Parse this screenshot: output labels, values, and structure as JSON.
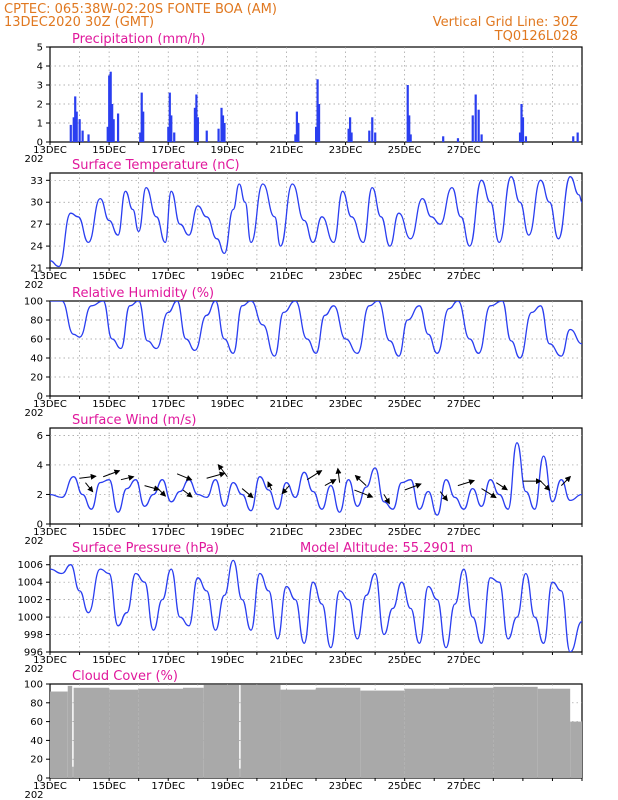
{
  "header": {
    "line1_left": "CPTEC:   065:38W-02:20S   FONTE BOA (AM)",
    "line2_left": "13DEC2020 30Z (GMT)",
    "line2_right": "Vertical Grid Line: 30Z",
    "line3_right": "TQ0126L028"
  },
  "colors": {
    "header": "#e07820",
    "title": "#e0189c",
    "series": "#2a3ef0",
    "cloud": "#a9a9a9",
    "arrow": "#000000"
  },
  "date_labels": [
    "13DEC",
    "15DEC",
    "17DEC",
    "19DEC",
    "21DEC",
    "23DEC",
    "25DEC",
    "27DEC"
  ],
  "year_stub": "202",
  "chart_data": [
    {
      "id": "precip",
      "type": "bar",
      "title": "Precipitation (mm/h)",
      "ylim": [
        0,
        5
      ],
      "yticks": [
        0,
        1,
        2,
        3,
        4,
        5
      ],
      "units": "mm/h",
      "peaks": [
        [
          0.7,
          0.9
        ],
        [
          0.8,
          1.3
        ],
        [
          0.85,
          2.4
        ],
        [
          0.9,
          1.6
        ],
        [
          1.0,
          1.2
        ],
        [
          1.1,
          0.6
        ],
        [
          1.3,
          0.4
        ],
        [
          1.95,
          0.8
        ],
        [
          2.0,
          3.5
        ],
        [
          2.05,
          3.7
        ],
        [
          2.1,
          2.0
        ],
        [
          2.15,
          1.2
        ],
        [
          2.3,
          1.5
        ],
        [
          3.05,
          0.5
        ],
        [
          3.1,
          2.6
        ],
        [
          3.15,
          1.6
        ],
        [
          4.0,
          0.8
        ],
        [
          4.05,
          2.6
        ],
        [
          4.1,
          1.4
        ],
        [
          4.2,
          0.5
        ],
        [
          4.9,
          1.8
        ],
        [
          4.95,
          2.5
        ],
        [
          5.0,
          1.3
        ],
        [
          5.3,
          0.6
        ],
        [
          5.7,
          0.7
        ],
        [
          5.8,
          1.8
        ],
        [
          5.85,
          1.4
        ],
        [
          5.9,
          1.0
        ],
        [
          8.3,
          0.4
        ],
        [
          8.35,
          1.6
        ],
        [
          8.4,
          1.0
        ],
        [
          9.0,
          0.8
        ],
        [
          9.05,
          3.3
        ],
        [
          9.1,
          2.0
        ],
        [
          10.1,
          0.7
        ],
        [
          10.15,
          1.3
        ],
        [
          10.2,
          0.5
        ],
        [
          10.8,
          0.6
        ],
        [
          10.9,
          1.3
        ],
        [
          11.0,
          0.5
        ],
        [
          12.1,
          3.0
        ],
        [
          12.15,
          1.4
        ],
        [
          12.2,
          0.4
        ],
        [
          13.3,
          0.3
        ],
        [
          13.8,
          0.2
        ],
        [
          14.3,
          1.4
        ],
        [
          14.4,
          2.5
        ],
        [
          14.5,
          1.7
        ],
        [
          14.6,
          0.4
        ],
        [
          15.9,
          0.5
        ],
        [
          15.95,
          2.0
        ],
        [
          16.0,
          1.3
        ],
        [
          16.1,
          0.3
        ],
        [
          17.7,
          0.3
        ],
        [
          17.85,
          0.5
        ]
      ]
    },
    {
      "id": "temp",
      "type": "line",
      "title": "Surface Temperature (nC)",
      "ylim": [
        21,
        34
      ],
      "yticks": [
        21,
        24,
        27,
        30,
        33
      ],
      "units": "C",
      "x": [
        0,
        0.3,
        0.7,
        0.95,
        1.3,
        1.7,
        2.0,
        2.3,
        2.55,
        2.8,
        3.0,
        3.25,
        3.6,
        3.9,
        4.1,
        4.4,
        4.7,
        5.0,
        5.3,
        5.65,
        5.9,
        6.2,
        6.4,
        6.6,
        6.8,
        7.2,
        7.6,
        7.8,
        8.2,
        8.6,
        8.9,
        9.2,
        9.6,
        9.9,
        10.2,
        10.6,
        10.9,
        11.2,
        11.5,
        11.8,
        12.2,
        12.6,
        12.9,
        13.2,
        13.6,
        13.9,
        14.2,
        14.6,
        14.9,
        15.2,
        15.6,
        15.9,
        16.2,
        16.6,
        16.9,
        17.2,
        17.6,
        17.9,
        18.0
      ],
      "y": [
        22.0,
        21.2,
        28.5,
        28.0,
        24.5,
        30.5,
        27.5,
        25.5,
        31.5,
        29.0,
        26.0,
        32.0,
        28.0,
        24.5,
        31.5,
        27.0,
        25.5,
        29.5,
        28.0,
        25.0,
        23.0,
        29.0,
        32.5,
        30.0,
        24.5,
        32.5,
        28.0,
        24.0,
        32.5,
        27.5,
        24.5,
        28.0,
        24.5,
        31.5,
        28.0,
        24.5,
        32.0,
        28.0,
        24.0,
        28.5,
        25.0,
        30.5,
        28.0,
        27.0,
        32.0,
        28.0,
        24.0,
        33.0,
        30.0,
        24.5,
        33.5,
        30.0,
        25.5,
        33.0,
        30.0,
        25.0,
        33.5,
        31.0,
        30.0
      ]
    },
    {
      "id": "rh",
      "type": "line",
      "title": "Relative Humidity (%)",
      "ylim": [
        0,
        100
      ],
      "yticks": [
        0,
        20,
        40,
        60,
        80,
        100
      ],
      "units": "%",
      "x": [
        0,
        0.4,
        0.8,
        1.0,
        1.4,
        1.8,
        2.1,
        2.4,
        2.7,
        3.0,
        3.3,
        3.6,
        4.0,
        4.3,
        4.6,
        4.9,
        5.3,
        5.6,
        5.9,
        6.2,
        6.5,
        6.8,
        7.2,
        7.6,
        7.9,
        8.3,
        8.7,
        9.0,
        9.3,
        9.6,
        10.0,
        10.4,
        10.8,
        11.1,
        11.5,
        11.8,
        12.1,
        12.5,
        12.8,
        13.1,
        13.5,
        13.8,
        14.2,
        14.5,
        14.9,
        15.3,
        15.6,
        15.9,
        16.3,
        16.6,
        16.9,
        17.3,
        17.6,
        18.0
      ],
      "y": [
        100,
        100,
        65,
        62,
        95,
        100,
        60,
        50,
        95,
        100,
        58,
        50,
        88,
        100,
        60,
        48,
        85,
        100,
        60,
        45,
        95,
        100,
        75,
        42,
        88,
        100,
        60,
        45,
        85,
        95,
        60,
        45,
        95,
        100,
        58,
        42,
        80,
        95,
        65,
        45,
        92,
        100,
        60,
        45,
        95,
        100,
        58,
        40,
        88,
        95,
        55,
        42,
        70,
        55
      ]
    },
    {
      "id": "wind",
      "type": "line",
      "title": "Surface Wind (m/s)",
      "ylim": [
        0,
        6.5
      ],
      "yticks": [
        0,
        2,
        4,
        6
      ],
      "units": "m/s",
      "x": [
        0,
        0.4,
        0.8,
        1.1,
        1.4,
        1.7,
        2.0,
        2.3,
        2.6,
        2.9,
        3.2,
        3.5,
        3.8,
        4.1,
        4.4,
        4.7,
        5.0,
        5.3,
        5.6,
        5.9,
        6.2,
        6.5,
        6.8,
        7.1,
        7.4,
        7.7,
        8.0,
        8.3,
        8.6,
        8.9,
        9.2,
        9.5,
        9.8,
        10.1,
        10.4,
        10.7,
        11.0,
        11.3,
        11.6,
        11.9,
        12.2,
        12.5,
        12.8,
        13.1,
        13.4,
        13.7,
        14.0,
        14.3,
        14.6,
        14.9,
        15.2,
        15.5,
        15.8,
        16.1,
        16.4,
        16.7,
        17.0,
        17.3,
        17.6,
        18.0
      ],
      "y": [
        2.0,
        1.8,
        3.2,
        2.0,
        1.0,
        2.8,
        3.0,
        0.8,
        2.4,
        3.0,
        1.2,
        2.0,
        3.0,
        1.5,
        2.2,
        3.0,
        2.0,
        1.8,
        3.0,
        1.2,
        2.8,
        2.0,
        0.9,
        3.2,
        2.3,
        1.0,
        2.8,
        1.8,
        3.5,
        2.2,
        1.0,
        2.6,
        0.8,
        3.0,
        1.2,
        2.5,
        3.8,
        1.5,
        1.0,
        2.8,
        3.0,
        1.0,
        2.2,
        0.6,
        3.0,
        1.8,
        1.0,
        2.4,
        1.2,
        3.0,
        2.0,
        1.0,
        5.5,
        2.2,
        1.0,
        4.6,
        1.5,
        3.0,
        1.6,
        2.0
      ],
      "arrows": [
        [
          1.0,
          3.1,
          0.9,
          0.2
        ],
        [
          1.2,
          2.8,
          0.4,
          -0.9
        ],
        [
          1.8,
          3.2,
          0.9,
          0.6
        ],
        [
          2.4,
          3.0,
          0.7,
          0.3
        ],
        [
          3.2,
          2.6,
          0.8,
          -0.4
        ],
        [
          3.6,
          2.5,
          0.5,
          -0.9
        ],
        [
          4.3,
          3.4,
          0.8,
          -0.6
        ],
        [
          4.5,
          2.3,
          0.5,
          -0.7
        ],
        [
          5.3,
          3.1,
          1.0,
          0.5
        ],
        [
          6.0,
          3.2,
          -0.5,
          1.2
        ],
        [
          6.5,
          2.4,
          0.6,
          -0.9
        ],
        [
          7.5,
          2.3,
          -0.2,
          0.8
        ],
        [
          8.1,
          2.6,
          -0.4,
          -0.8
        ],
        [
          8.7,
          3.0,
          0.8,
          0.9
        ],
        [
          9.3,
          2.6,
          0.6,
          0.6
        ],
        [
          9.8,
          2.8,
          -0.1,
          1.4
        ],
        [
          10.3,
          2.3,
          1.0,
          -0.7
        ],
        [
          10.7,
          2.6,
          -0.6,
          1.0
        ],
        [
          11.3,
          2.0,
          0.3,
          -0.9
        ],
        [
          12.0,
          2.3,
          0.9,
          0.6
        ],
        [
          13.2,
          2.2,
          0.4,
          -0.9
        ],
        [
          13.8,
          2.6,
          0.9,
          0.5
        ],
        [
          14.6,
          2.4,
          0.8,
          -0.9
        ],
        [
          15.1,
          2.8,
          0.6,
          -0.7
        ],
        [
          16.0,
          2.9,
          1.0,
          0.0
        ],
        [
          16.6,
          2.9,
          0.5,
          -0.9
        ],
        [
          17.3,
          2.6,
          0.5,
          0.9
        ]
      ]
    },
    {
      "id": "pres",
      "type": "line",
      "title": "Surface Pressure (hPa)",
      "annotation": "Model Altitude: 55.2901 m",
      "ylim": [
        996,
        1007
      ],
      "yticks": [
        996,
        998,
        1000,
        1002,
        1004,
        1006
      ],
      "units": "hPa",
      "x": [
        0,
        0.4,
        0.7,
        1.0,
        1.3,
        1.7,
        2.0,
        2.3,
        2.6,
        2.9,
        3.2,
        3.5,
        3.8,
        4.1,
        4.4,
        4.7,
        5.0,
        5.3,
        5.6,
        5.9,
        6.2,
        6.5,
        6.8,
        7.1,
        7.4,
        7.7,
        8.0,
        8.3,
        8.6,
        8.9,
        9.2,
        9.5,
        9.8,
        10.1,
        10.4,
        10.7,
        11.0,
        11.3,
        11.6,
        11.9,
        12.2,
        12.5,
        12.8,
        13.1,
        13.4,
        13.7,
        14.0,
        14.3,
        14.6,
        14.9,
        15.2,
        15.5,
        15.8,
        16.1,
        16.4,
        16.7,
        17.0,
        17.3,
        17.6,
        18.0
      ],
      "y": [
        1005.5,
        1005.0,
        1006.0,
        1003.0,
        1000.5,
        1005.5,
        1005.0,
        999.0,
        1000.5,
        1005.0,
        1004.0,
        998.5,
        1002.0,
        1005.5,
        1000.0,
        999.0,
        1004.5,
        1003.0,
        998.5,
        1002.5,
        1006.5,
        1002.0,
        998.5,
        1005.0,
        1003.0,
        997.5,
        1003.5,
        1002.0,
        997.0,
        1004.0,
        1001.5,
        996.5,
        1003.0,
        1002.0,
        997.5,
        1002.5,
        1005.0,
        998.0,
        1001.0,
        1004.0,
        1001.0,
        997.0,
        1003.5,
        1002.0,
        996.5,
        1001.5,
        1005.5,
        1000.0,
        997.0,
        1004.5,
        1004.0,
        997.5,
        1000.0,
        1005.0,
        1000.0,
        997.0,
        1004.0,
        1003.0,
        996.0,
        999.5
      ]
    },
    {
      "id": "cloud",
      "type": "bar",
      "title": "Cloud Cover (%)",
      "ylim": [
        0,
        100
      ],
      "yticks": [
        0,
        20,
        40,
        60,
        80,
        100
      ],
      "units": "%",
      "segments": [
        [
          0,
          0.6,
          92
        ],
        [
          0.6,
          0.75,
          98
        ],
        [
          0.75,
          0.8,
          12
        ],
        [
          0.8,
          2.0,
          96
        ],
        [
          2.0,
          3.0,
          94
        ],
        [
          3.0,
          4.5,
          95
        ],
        [
          4.5,
          5.2,
          96
        ],
        [
          5.2,
          6.4,
          99
        ],
        [
          6.4,
          6.45,
          10
        ],
        [
          6.45,
          7.8,
          99
        ],
        [
          7.8,
          9.0,
          94
        ],
        [
          9.0,
          10.5,
          96
        ],
        [
          10.5,
          12.0,
          93
        ],
        [
          12.0,
          13.5,
          95
        ],
        [
          13.5,
          15.0,
          96
        ],
        [
          15.0,
          16.5,
          97
        ],
        [
          16.5,
          17.6,
          95
        ],
        [
          17.6,
          18.0,
          60
        ]
      ]
    }
  ]
}
